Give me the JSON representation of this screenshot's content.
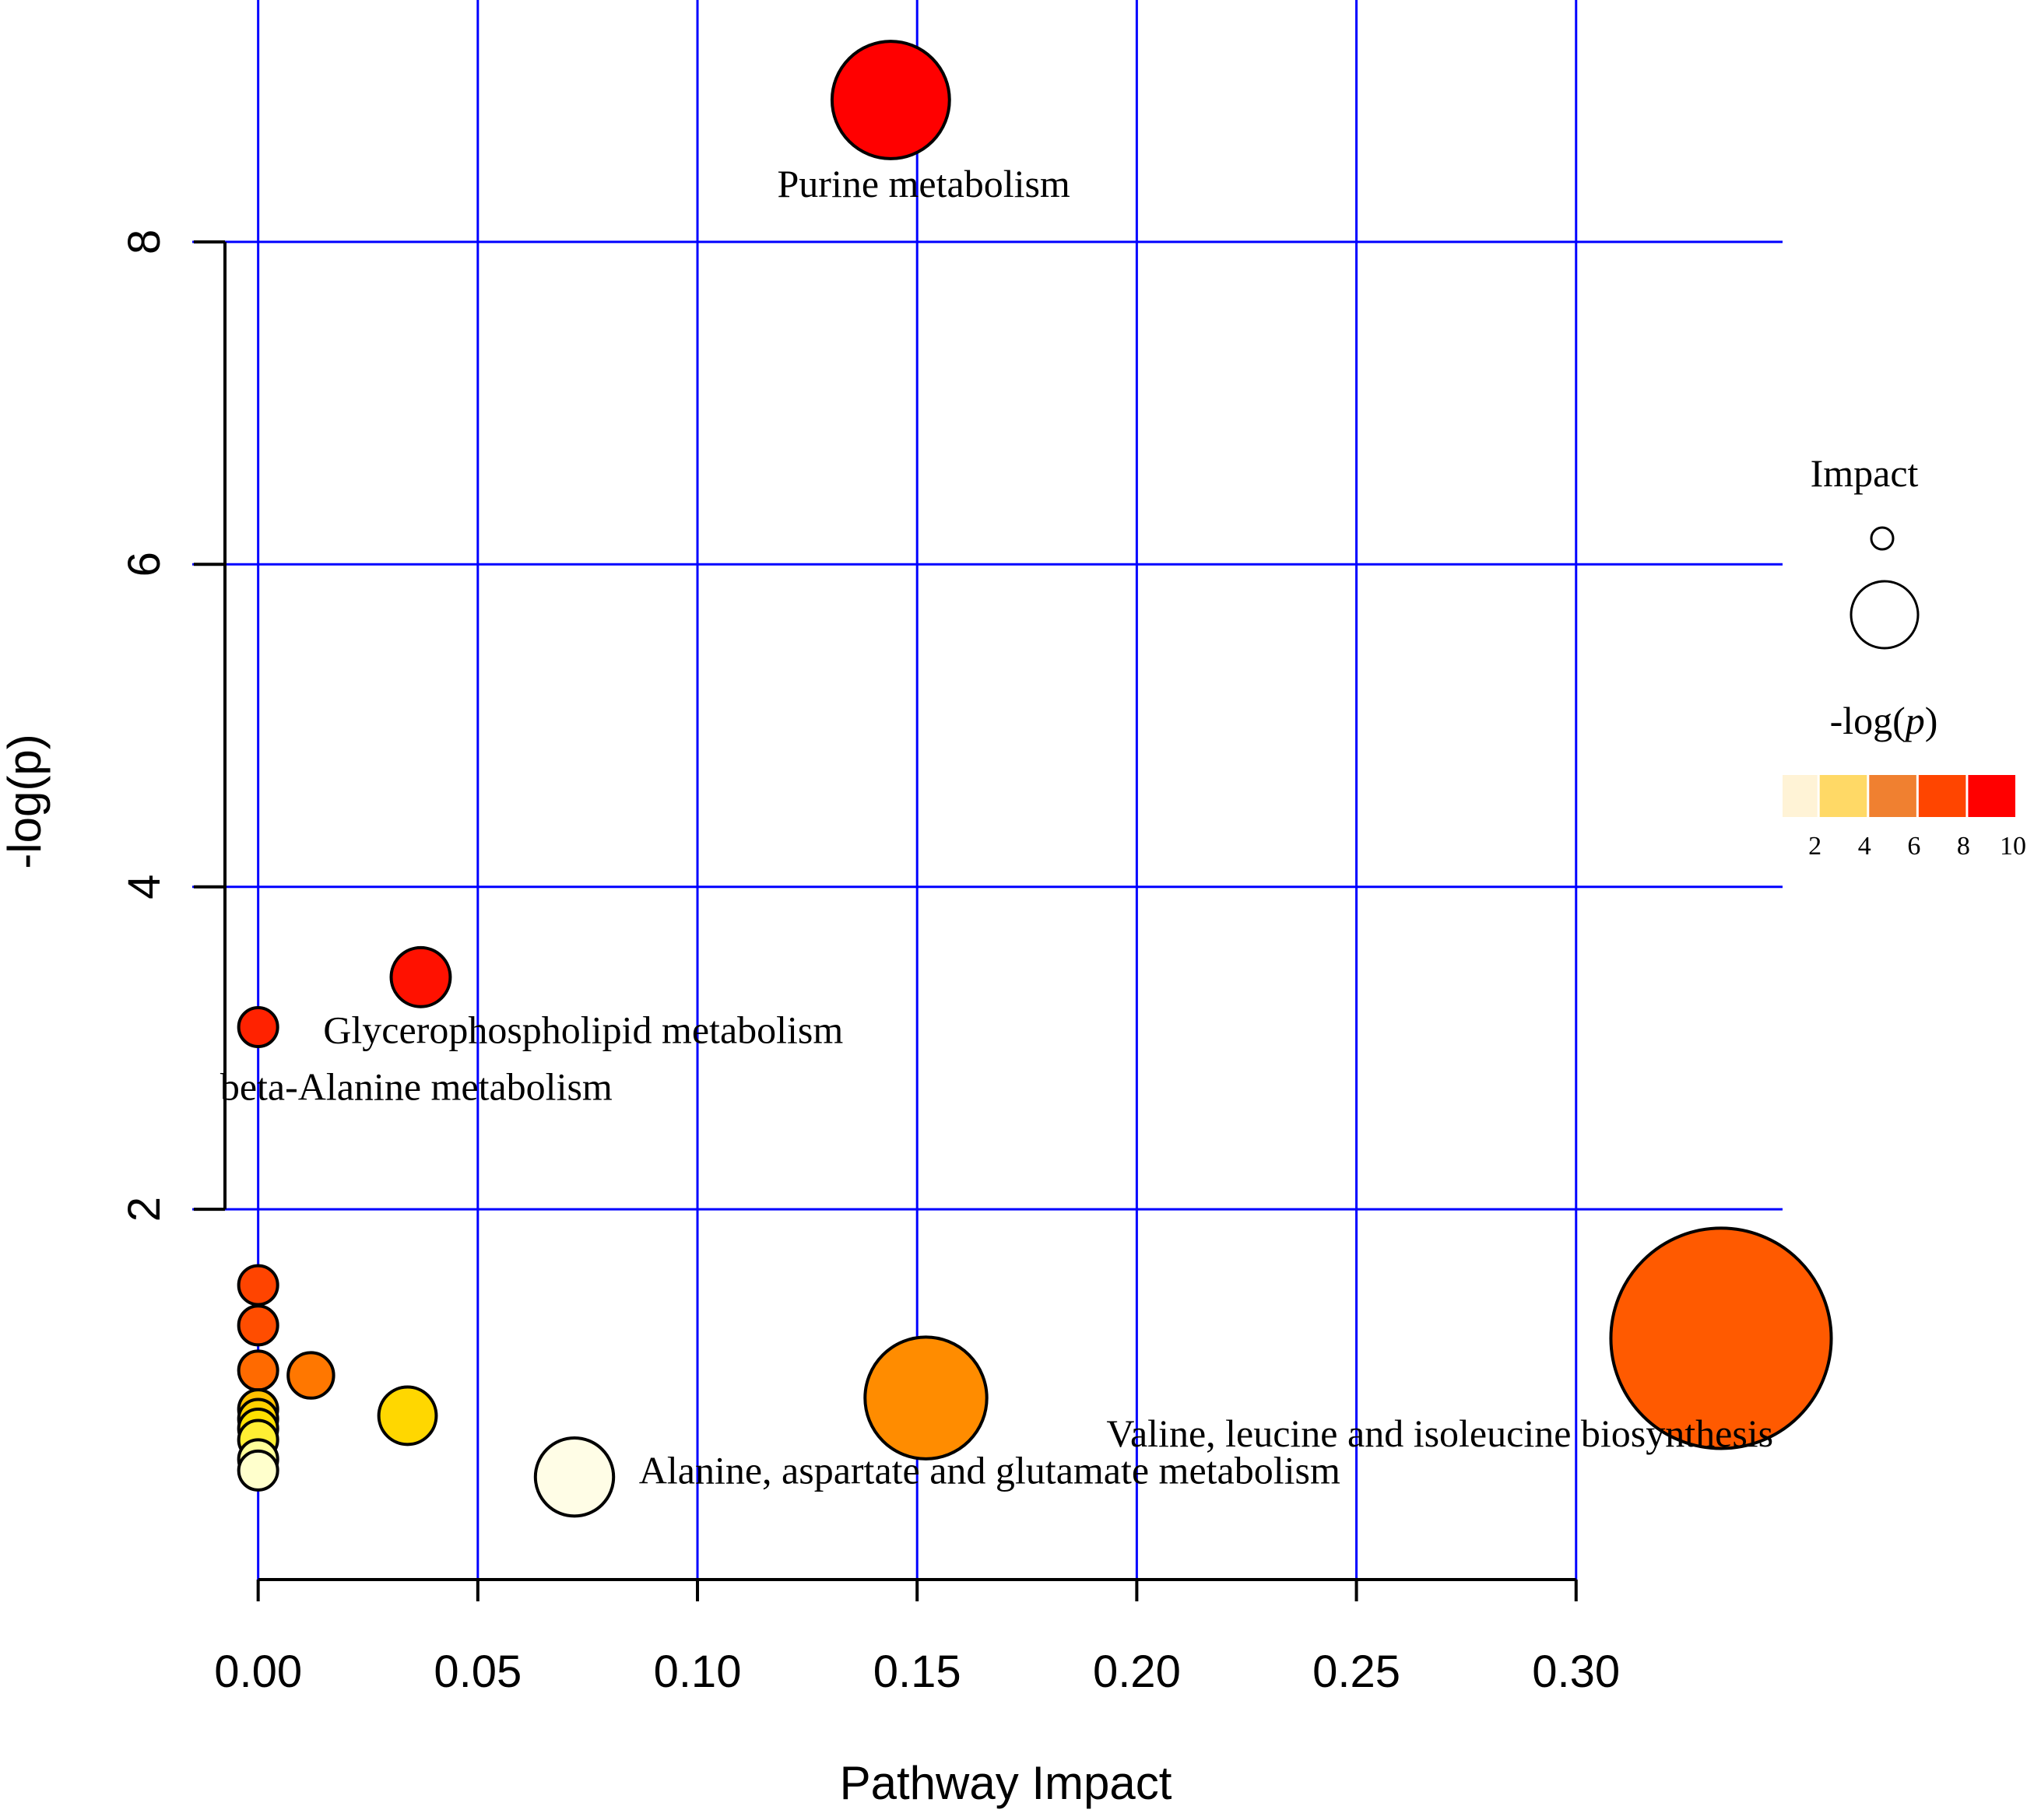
{
  "chart_data": {
    "type": "scatter",
    "title": "",
    "xlabel": "Pathway Impact",
    "ylabel": "-log(p)",
    "xlim": [
      -0.015,
      0.347
    ],
    "ylim": [
      -0.33,
      9.5
    ],
    "x_ticks": [
      {
        "value": 0.0,
        "label": "0.00"
      },
      {
        "value": 0.05,
        "label": "0.05"
      },
      {
        "value": 0.1,
        "label": "0.10"
      },
      {
        "value": 0.15,
        "label": "0.15"
      },
      {
        "value": 0.2,
        "label": "0.20"
      },
      {
        "value": 0.25,
        "label": "0.25"
      },
      {
        "value": 0.3,
        "label": "0.30"
      }
    ],
    "y_ticks": [
      {
        "value": 2,
        "label": "2"
      },
      {
        "value": 4,
        "label": "4"
      },
      {
        "value": 6,
        "label": "6"
      },
      {
        "value": 8,
        "label": "8"
      }
    ],
    "grid": true,
    "grid_color": "#0000ff",
    "points": [
      {
        "x": 0.144,
        "y": 8.88,
        "impact": 0.144,
        "color": "#ff0000",
        "label": "Purine metabolism"
      },
      {
        "x": 0.037,
        "y": 3.44,
        "impact": 0.037,
        "color": "#ff1100",
        "label": ""
      },
      {
        "x": 0.0,
        "y": 3.13,
        "impact": 0.0,
        "color": "#ff2200",
        "label": ""
      },
      {
        "x": 0.0,
        "y": 1.53,
        "impact": 0.0,
        "color": "#ff4400",
        "label": ""
      },
      {
        "x": 0.0,
        "y": 1.28,
        "impact": 0.0,
        "color": "#ff4d00",
        "label": ""
      },
      {
        "x": 0.0,
        "y": 1.0,
        "impact": 0.0,
        "color": "#ff6a00",
        "label": ""
      },
      {
        "x": 0.012,
        "y": 0.97,
        "impact": 0.012,
        "color": "#ff7700",
        "label": ""
      },
      {
        "x": 0.0,
        "y": 0.76,
        "impact": 0.0,
        "color": "#ffc000",
        "label": ""
      },
      {
        "x": 0.0,
        "y": 0.7,
        "impact": 0.0,
        "color": "#ffd000",
        "label": ""
      },
      {
        "x": 0.0,
        "y": 0.64,
        "impact": 0.0,
        "color": "#ffe000",
        "label": ""
      },
      {
        "x": 0.0,
        "y": 0.57,
        "impact": 0.0,
        "color": "#ffee33",
        "label": ""
      },
      {
        "x": 0.0,
        "y": 0.45,
        "impact": 0.0,
        "color": "#ffff99",
        "label": ""
      },
      {
        "x": 0.0,
        "y": 0.38,
        "impact": 0.0,
        "color": "#ffffcc",
        "label": ""
      },
      {
        "x": 0.034,
        "y": 0.72,
        "impact": 0.034,
        "color": "#ffd700",
        "label": ""
      },
      {
        "x": 0.152,
        "y": 0.83,
        "impact": 0.152,
        "color": "#ff8c00",
        "label": ""
      },
      {
        "x": 0.072,
        "y": 0.34,
        "impact": 0.072,
        "color": "#fffde6",
        "label": "Alanine, aspartate and glutamate metabolism"
      },
      {
        "x": 0.333,
        "y": 1.2,
        "impact": 0.333,
        "color": "#ff5a00",
        "label": "Valine, leucine and isoleucine biosynthesis"
      }
    ],
    "annotations": [
      {
        "text": "Purine metabolism",
        "x": 0.1515,
        "y": 8.28
      },
      {
        "text": "Glycerophospholipid metabolism",
        "x": 0.074,
        "y": 3.03
      },
      {
        "text": "beta-Alanine metabolism",
        "x": 0.036,
        "y": 2.68
      },
      {
        "text": "Alanine, aspartate and glutamate metabolism",
        "x": 0.1665,
        "y": 0.3
      },
      {
        "text": "Valine, leucine and isoleucine biosynthesis",
        "x": 0.269,
        "y": 0.53
      }
    ],
    "legend": {
      "position": "right",
      "size_title": "Impact",
      "color_title_prefix": "-log(",
      "color_title_var": "p",
      "color_title_suffix": ")",
      "color_bins": [
        "#fff3d6",
        "#ffd966",
        "#f08030",
        "#ff4500",
        "#ff0000"
      ],
      "color_ticks": [
        {
          "value": 2,
          "label": "2"
        },
        {
          "value": 4,
          "label": "4"
        },
        {
          "value": 6,
          "label": "6"
        },
        {
          "value": 8,
          "label": "8"
        },
        {
          "value": 10,
          "label": "10"
        }
      ],
      "color_range": [
        0.5,
        10
      ]
    }
  }
}
